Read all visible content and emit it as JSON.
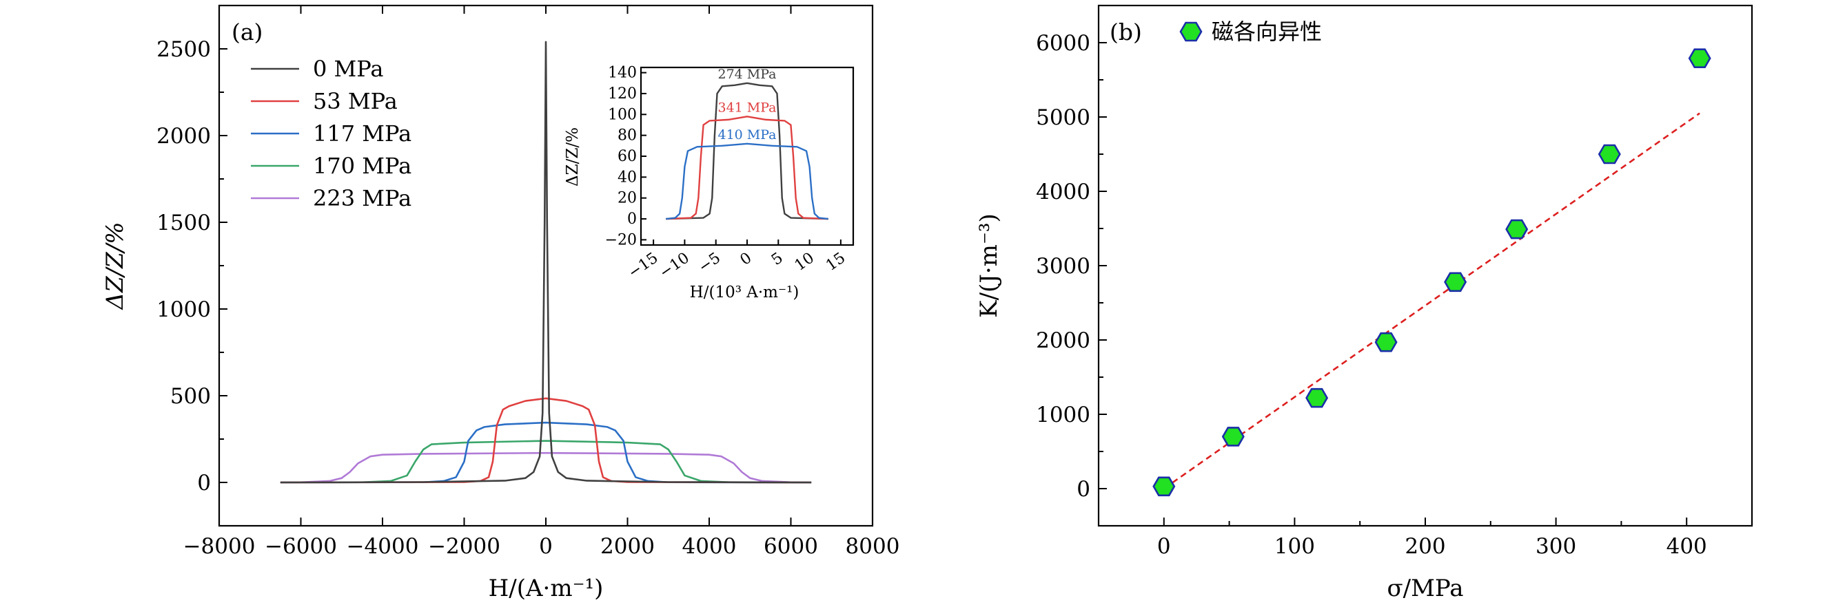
{
  "chart_data": [
    {
      "panel_label": "(a)",
      "type": "line",
      "xlabel": "H/(A·m⁻¹)",
      "ylabel": "ΔZ/Z/%",
      "xlim": [
        -8000,
        8000
      ],
      "ylim": [
        -250,
        2750
      ],
      "xticks": [
        -8000,
        -6000,
        -4000,
        -2000,
        0,
        2000,
        4000,
        6000,
        8000
      ],
      "yticks": [
        0,
        500,
        1000,
        1500,
        2000,
        2500
      ],
      "xtick_labels": [
        "−8000",
        "−6000",
        "−4000",
        "−2000",
        "0",
        "2000",
        "4000",
        "6000",
        "8000"
      ],
      "ytick_labels": [
        "0",
        "500",
        "1000",
        "1500",
        "2000",
        "2500"
      ],
      "legend_position": "top-left",
      "series": [
        {
          "name": "0 MPa",
          "color": "#404040",
          "x": [
            -6500,
            -3000,
            -1000,
            -500,
            -300,
            -150,
            -80,
            -30,
            0,
            30,
            80,
            150,
            300,
            500,
            1000,
            3000,
            6500
          ],
          "y": [
            0,
            2,
            10,
            25,
            60,
            150,
            400,
            1500,
            2540,
            1500,
            400,
            150,
            60,
            25,
            10,
            2,
            0
          ]
        },
        {
          "name": "53 MPa",
          "color": "#e04040",
          "x": [
            -6500,
            -2000,
            -1600,
            -1400,
            -1300,
            -1200,
            -1050,
            -900,
            -500,
            0,
            500,
            900,
            1050,
            1200,
            1300,
            1400,
            1600,
            2000,
            6500
          ],
          "y": [
            0,
            2,
            8,
            30,
            120,
            330,
            420,
            440,
            470,
            485,
            470,
            440,
            420,
            330,
            120,
            30,
            8,
            2,
            0
          ]
        },
        {
          "name": "117 MPa",
          "color": "#2b6fc6",
          "x": [
            -6500,
            -3000,
            -2500,
            -2200,
            -2000,
            -1900,
            -1700,
            -1500,
            -1000,
            0,
            1000,
            1500,
            1700,
            1900,
            2000,
            2200,
            2500,
            3000,
            6500
          ],
          "y": [
            0,
            1,
            8,
            30,
            120,
            240,
            300,
            320,
            335,
            345,
            335,
            320,
            300,
            240,
            120,
            30,
            8,
            1,
            0
          ]
        },
        {
          "name": "170 MPa",
          "color": "#3aa66a",
          "x": [
            -6500,
            -4500,
            -3800,
            -3400,
            -3200,
            -3000,
            -2800,
            -2000,
            0,
            2000,
            2800,
            3000,
            3200,
            3400,
            3800,
            4500,
            6500
          ],
          "y": [
            0,
            1,
            8,
            40,
            120,
            190,
            220,
            230,
            240,
            230,
            220,
            190,
            120,
            40,
            8,
            1,
            0
          ]
        },
        {
          "name": "223 MPa",
          "color": "#b07ad6",
          "x": [
            -6500,
            -6000,
            -5300,
            -5000,
            -4800,
            -4600,
            -4300,
            -4000,
            -3000,
            0,
            3000,
            4000,
            4300,
            4600,
            4800,
            5000,
            5300,
            6000,
            6500
          ],
          "y": [
            0,
            1,
            8,
            25,
            60,
            110,
            150,
            160,
            165,
            170,
            165,
            160,
            150,
            110,
            60,
            25,
            8,
            1,
            0
          ]
        }
      ],
      "inset": {
        "type": "line",
        "xlabel": "H/(10³ A·m⁻¹)",
        "ylabel": "ΔZ/Z/%",
        "xlim": [
          -17,
          17
        ],
        "ylim": [
          -25,
          145
        ],
        "xticks": [
          -15,
          -10,
          -5,
          0,
          5,
          10,
          15
        ],
        "yticks": [
          -20,
          0,
          20,
          40,
          60,
          80,
          100,
          120,
          140
        ],
        "xtick_labels": [
          "−15",
          "−10",
          "−5",
          "0",
          "5",
          "10",
          "15"
        ],
        "ytick_labels": [
          "−20",
          "0",
          "20",
          "40",
          "60",
          "80",
          "100",
          "120",
          "140"
        ],
        "series": [
          {
            "name": "274 MPa",
            "color": "#404040",
            "x": [
              -13,
              -7,
              -6,
              -5.6,
              -5.2,
              -4.8,
              -4,
              -2,
              0,
              2,
              4,
              4.8,
              5.2,
              5.6,
              6,
              7,
              13
            ],
            "y": [
              0,
              1,
              5,
              20,
              80,
              120,
              127,
              128,
              130,
              128,
              127,
              120,
              80,
              20,
              5,
              1,
              0
            ]
          },
          {
            "name": "341 MPa",
            "color": "#e04040",
            "x": [
              -13,
              -9,
              -8.2,
              -7.8,
              -7.4,
              -7,
              -6,
              -3,
              0,
              3,
              6,
              7,
              7.4,
              7.8,
              8.2,
              9,
              13
            ],
            "y": [
              0,
              1,
              5,
              20,
              60,
              90,
              94,
              95,
              98,
              95,
              94,
              90,
              60,
              20,
              5,
              1,
              0
            ]
          },
          {
            "name": "410 MPa",
            "color": "#2b6fc6",
            "x": [
              -13,
              -11.5,
              -10.8,
              -10.4,
              -10,
              -9.5,
              -8,
              -4,
              0,
              4,
              8,
              9.5,
              10,
              10.4,
              10.8,
              11.5,
              13
            ],
            "y": [
              0,
              1,
              5,
              20,
              50,
              65,
              69,
              70,
              72,
              70,
              69,
              65,
              50,
              20,
              5,
              1,
              0
            ]
          }
        ]
      }
    },
    {
      "panel_label": "(b)",
      "type": "scatter",
      "xlabel": "σ/MPa",
      "ylabel": "K/(J·m⁻³)",
      "xlim": [
        -50,
        450
      ],
      "ylim": [
        -500,
        6500
      ],
      "xticks": [
        0,
        100,
        200,
        300,
        400
      ],
      "yticks": [
        0,
        1000,
        2000,
        3000,
        4000,
        5000,
        6000
      ],
      "xtick_labels": [
        "0",
        "100",
        "200",
        "300",
        "400"
      ],
      "ytick_labels": [
        "0",
        "1000",
        "2000",
        "3000",
        "4000",
        "5000",
        "6000"
      ],
      "legend_position": "top-left",
      "series": [
        {
          "name": "磁各向异性",
          "marker_fill": "#22e022",
          "marker_edge": "#1a2fa8",
          "x": [
            0,
            53,
            117,
            170,
            223,
            270,
            341,
            410
          ],
          "y": [
            30,
            700,
            1220,
            1970,
            2780,
            3490,
            4500,
            5790
          ]
        }
      ],
      "fit_line": {
        "color": "#dd1f1f",
        "style": "dashed",
        "x": [
          0,
          410
        ],
        "y": [
          0,
          5050
        ]
      }
    }
  ]
}
